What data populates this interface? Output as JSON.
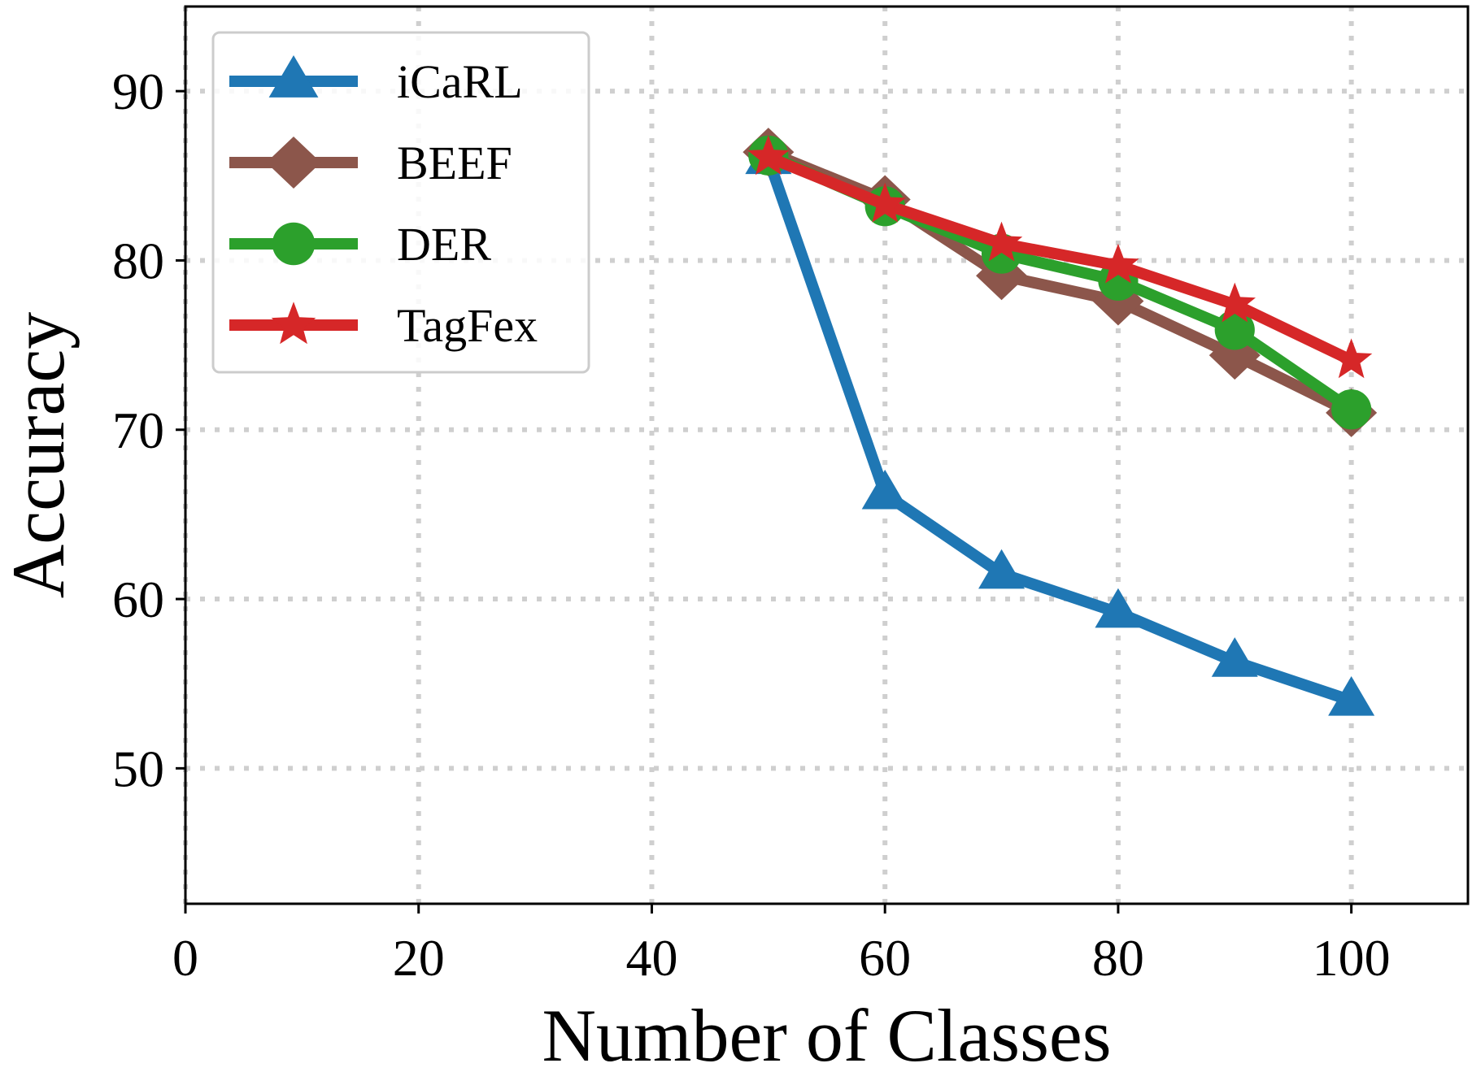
{
  "chart_data": {
    "type": "line",
    "xlabel": "Number of Classes",
    "ylabel": "Accuracy",
    "xlim": [
      0,
      110
    ],
    "ylim": [
      42,
      95
    ],
    "xticks": [
      0,
      20,
      40,
      60,
      80,
      100
    ],
    "yticks": [
      50,
      60,
      70,
      80,
      90
    ],
    "grid": true,
    "legend_position": "top-left",
    "x": [
      50,
      60,
      70,
      80,
      90,
      100
    ],
    "series": [
      {
        "name": "iCaRL",
        "color": "#1f77b4",
        "marker": "triangle",
        "values": [
          86.0,
          66.2,
          61.5,
          59.2,
          56.3,
          54.0
        ]
      },
      {
        "name": "BEEF",
        "color": "#8c564b",
        "marker": "diamond",
        "values": [
          86.4,
          83.6,
          79.1,
          77.6,
          74.4,
          71.0
        ]
      },
      {
        "name": "DER",
        "color": "#2ca02c",
        "marker": "circle",
        "values": [
          86.2,
          83.2,
          80.4,
          78.8,
          75.9,
          71.2
        ]
      },
      {
        "name": "TagFex",
        "color": "#d62728",
        "marker": "star",
        "values": [
          86.1,
          83.3,
          81.0,
          79.7,
          77.4,
          74.1
        ]
      }
    ]
  }
}
